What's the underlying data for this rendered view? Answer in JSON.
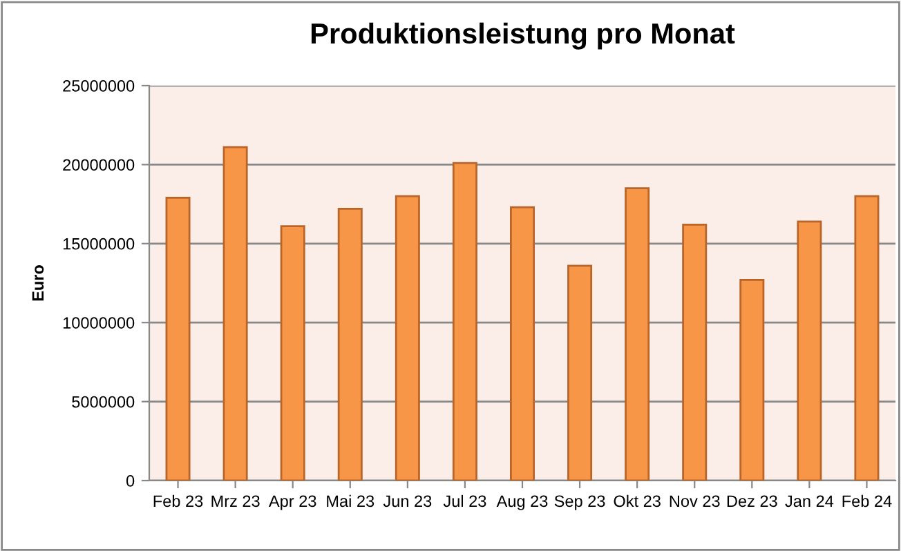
{
  "chart_data": {
    "type": "bar",
    "title": "Produktionsleistung pro Monat",
    "ylabel": "Euro",
    "categories": [
      "Feb 23",
      "Mrz 23",
      "Apr 23",
      "Mai 23",
      "Jun 23",
      "Jul 23",
      "Aug 23",
      "Sep 23",
      "Okt 23",
      "Nov 23",
      "Dez 23",
      "Jan 24",
      "Feb 24"
    ],
    "values": [
      17900000,
      21100000,
      16100000,
      17200000,
      18000000,
      20100000,
      17300000,
      13600000,
      18500000,
      16200000,
      12700000,
      16400000,
      18000000
    ],
    "color": "#f79646",
    "ylim": [
      0,
      25000000
    ],
    "yticks": [
      0,
      5000000,
      10000000,
      15000000,
      20000000,
      25000000
    ],
    "grid": "y",
    "legend": false
  }
}
